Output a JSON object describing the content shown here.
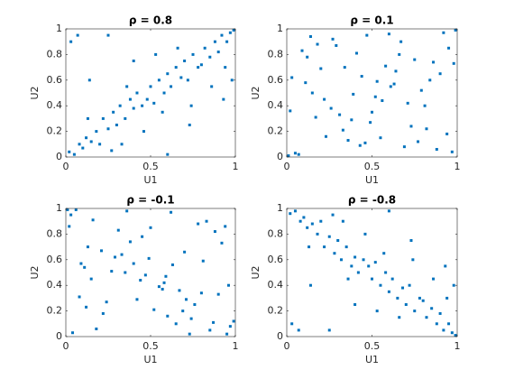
{
  "chart_data": [
    {
      "type": "scatter",
      "title": "ρ = 0.8",
      "xlabel": "U1",
      "ylabel": "U2",
      "color": "#0072bd",
      "xlim": [
        0,
        1
      ],
      "ylim": [
        0,
        1
      ],
      "xticks": [
        0,
        0.5,
        1
      ],
      "yticks": [
        0,
        0.2,
        0.4,
        0.6,
        0.8,
        1
      ],
      "x": [
        0.02,
        0.05,
        0.08,
        0.1,
        0.12,
        0.15,
        0.18,
        0.2,
        0.22,
        0.25,
        0.28,
        0.3,
        0.32,
        0.35,
        0.38,
        0.4,
        0.42,
        0.45,
        0.48,
        0.5,
        0.52,
        0.55,
        0.58,
        0.6,
        0.62,
        0.65,
        0.68,
        0.7,
        0.72,
        0.75,
        0.78,
        0.8,
        0.82,
        0.85,
        0.88,
        0.9,
        0.92,
        0.95,
        0.97,
        0.99,
        0.03,
        0.14,
        0.27,
        0.36,
        0.46,
        0.57,
        0.66,
        0.74,
        0.86,
        0.94,
        0.13,
        0.33,
        0.53,
        0.73,
        0.93,
        0.07,
        0.6,
        0.4,
        0.98,
        0.25
      ],
      "y": [
        0.04,
        0.02,
        0.1,
        0.07,
        0.15,
        0.12,
        0.2,
        0.1,
        0.3,
        0.22,
        0.35,
        0.25,
        0.4,
        0.3,
        0.45,
        0.38,
        0.5,
        0.4,
        0.45,
        0.55,
        0.42,
        0.6,
        0.5,
        0.65,
        0.55,
        0.7,
        0.62,
        0.75,
        0.6,
        0.8,
        0.7,
        0.72,
        0.85,
        0.78,
        0.9,
        0.82,
        0.95,
        0.9,
        0.97,
        0.99,
        0.9,
        0.6,
        0.05,
        0.55,
        0.2,
        0.35,
        0.85,
        0.4,
        0.55,
        0.7,
        0.3,
        0.1,
        0.8,
        0.25,
        0.45,
        0.95,
        0.02,
        0.75,
        0.6,
        0.95
      ]
    },
    {
      "type": "scatter",
      "title": "ρ = 0.1",
      "xlabel": "U1",
      "ylabel": "U2",
      "color": "#0072bd",
      "xlim": [
        0,
        1
      ],
      "ylim": [
        0,
        1
      ],
      "xticks": [
        0,
        0.5,
        1
      ],
      "yticks": [
        0,
        0.2,
        0.4,
        0.6,
        0.8,
        1
      ],
      "x": [
        0.05,
        0.92,
        0.33,
        0.61,
        0.18,
        0.77,
        0.44,
        0.02,
        0.86,
        0.52,
        0.27,
        0.69,
        0.11,
        0.95,
        0.38,
        0.58,
        0.23,
        0.81,
        0.47,
        0.07,
        0.64,
        0.31,
        0.99,
        0.15,
        0.73,
        0.41,
        0.56,
        0.88,
        0.2,
        0.67,
        0.36,
        0.03,
        0.79,
        0.49,
        0.12,
        0.94,
        0.26,
        0.6,
        0.84,
        0.43,
        0.09,
        0.71,
        0.34,
        0.55,
        0.97,
        0.17,
        0.63,
        0.29,
        0.9,
        0.5,
        0.01,
        0.75,
        0.39,
        0.14,
        0.82,
        0.46,
        0.66,
        0.22,
        0.98,
        0.53
      ],
      "y": [
        0.03,
        0.97,
        0.21,
        0.55,
        0.88,
        0.12,
        0.63,
        0.36,
        0.74,
        0.47,
        0.92,
        0.08,
        0.58,
        0.85,
        0.29,
        0.71,
        0.16,
        0.4,
        0.95,
        0.02,
        0.67,
        0.33,
        0.99,
        0.5,
        0.24,
        0.81,
        0.44,
        0.06,
        0.69,
        0.9,
        0.13,
        0.62,
        0.52,
        0.27,
        0.78,
        0.18,
        0.38,
        0.96,
        0.6,
        0.09,
        0.83,
        0.42,
        0.7,
        0.15,
        0.04,
        0.31,
        0.57,
        0.87,
        0.65,
        0.35,
        0.01,
        0.76,
        0.49,
        0.94,
        0.22,
        0.11,
        0.8,
        0.45,
        0.73,
        0.59
      ]
    },
    {
      "type": "scatter",
      "title": "ρ = -0.1",
      "xlabel": "U1",
      "ylabel": "U2",
      "color": "#0072bd",
      "xlim": [
        0,
        1
      ],
      "ylim": [
        0,
        1
      ],
      "xticks": [
        0,
        0.5,
        1
      ],
      "yticks": [
        0,
        0.2,
        0.4,
        0.6,
        0.8,
        1
      ],
      "x": [
        0.03,
        0.97,
        0.21,
        0.55,
        0.88,
        0.12,
        0.63,
        0.36,
        0.74,
        0.47,
        0.92,
        0.08,
        0.58,
        0.85,
        0.29,
        0.71,
        0.16,
        0.4,
        0.95,
        0.02,
        0.67,
        0.33,
        0.99,
        0.5,
        0.24,
        0.81,
        0.44,
        0.06,
        0.69,
        0.9,
        0.13,
        0.62,
        0.52,
        0.27,
        0.78,
        0.18,
        0.38,
        0.96,
        0.6,
        0.09,
        0.83,
        0.42,
        0.7,
        0.15,
        0.04,
        0.31,
        0.57,
        0.87,
        0.65,
        0.35,
        0.01,
        0.76,
        0.49,
        0.94,
        0.22,
        0.11,
        0.8,
        0.45,
        0.73,
        0.59
      ],
      "y": [
        0.95,
        0.08,
        0.67,
        0.39,
        0.82,
        0.23,
        0.56,
        0.98,
        0.14,
        0.48,
        0.73,
        0.31,
        0.42,
        0.05,
        0.62,
        0.29,
        0.91,
        0.57,
        0.02,
        0.86,
        0.36,
        0.64,
        0.12,
        0.85,
        0.27,
        0.59,
        0.44,
        0.99,
        0.2,
        0.33,
        0.7,
        0.97,
        0.21,
        0.51,
        0.88,
        0.06,
        0.74,
        0.4,
        0.16,
        0.57,
        0.9,
        0.29,
        0.66,
        0.45,
        0.03,
        0.83,
        0.37,
        0.11,
        0.1,
        0.5,
        0.99,
        0.25,
        0.61,
        0.86,
        0.18,
        0.54,
        0.34,
        0.78,
        0.02,
        0.47
      ]
    },
    {
      "type": "scatter",
      "title": "ρ = -0.8",
      "xlabel": "U1",
      "ylabel": "U2",
      "color": "#0072bd",
      "xlim": [
        0,
        1
      ],
      "ylim": [
        0,
        1
      ],
      "xticks": [
        0,
        0.5,
        1
      ],
      "yticks": [
        0,
        0.2,
        0.4,
        0.6,
        0.8,
        1
      ],
      "x": [
        0.02,
        0.05,
        0.08,
        0.1,
        0.12,
        0.15,
        0.18,
        0.2,
        0.22,
        0.25,
        0.28,
        0.3,
        0.32,
        0.35,
        0.38,
        0.4,
        0.42,
        0.45,
        0.48,
        0.5,
        0.52,
        0.55,
        0.58,
        0.6,
        0.62,
        0.65,
        0.68,
        0.7,
        0.72,
        0.75,
        0.78,
        0.8,
        0.82,
        0.85,
        0.88,
        0.9,
        0.92,
        0.95,
        0.97,
        0.99,
        0.03,
        0.14,
        0.27,
        0.36,
        0.46,
        0.57,
        0.66,
        0.74,
        0.86,
        0.94,
        0.13,
        0.33,
        0.53,
        0.73,
        0.93,
        0.07,
        0.6,
        0.4,
        0.98,
        0.25
      ],
      "y": [
        0.96,
        0.98,
        0.9,
        0.93,
        0.85,
        0.88,
        0.8,
        0.9,
        0.7,
        0.78,
        0.65,
        0.75,
        0.6,
        0.7,
        0.55,
        0.62,
        0.5,
        0.6,
        0.55,
        0.45,
        0.58,
        0.4,
        0.5,
        0.35,
        0.45,
        0.3,
        0.38,
        0.25,
        0.4,
        0.2,
        0.3,
        0.28,
        0.15,
        0.22,
        0.1,
        0.18,
        0.05,
        0.1,
        0.03,
        0.01,
        0.1,
        0.4,
        0.95,
        0.45,
        0.8,
        0.65,
        0.15,
        0.6,
        0.45,
        0.3,
        0.7,
        0.9,
        0.2,
        0.75,
        0.55,
        0.05,
        0.98,
        0.25,
        0.4,
        0.05
      ]
    }
  ]
}
